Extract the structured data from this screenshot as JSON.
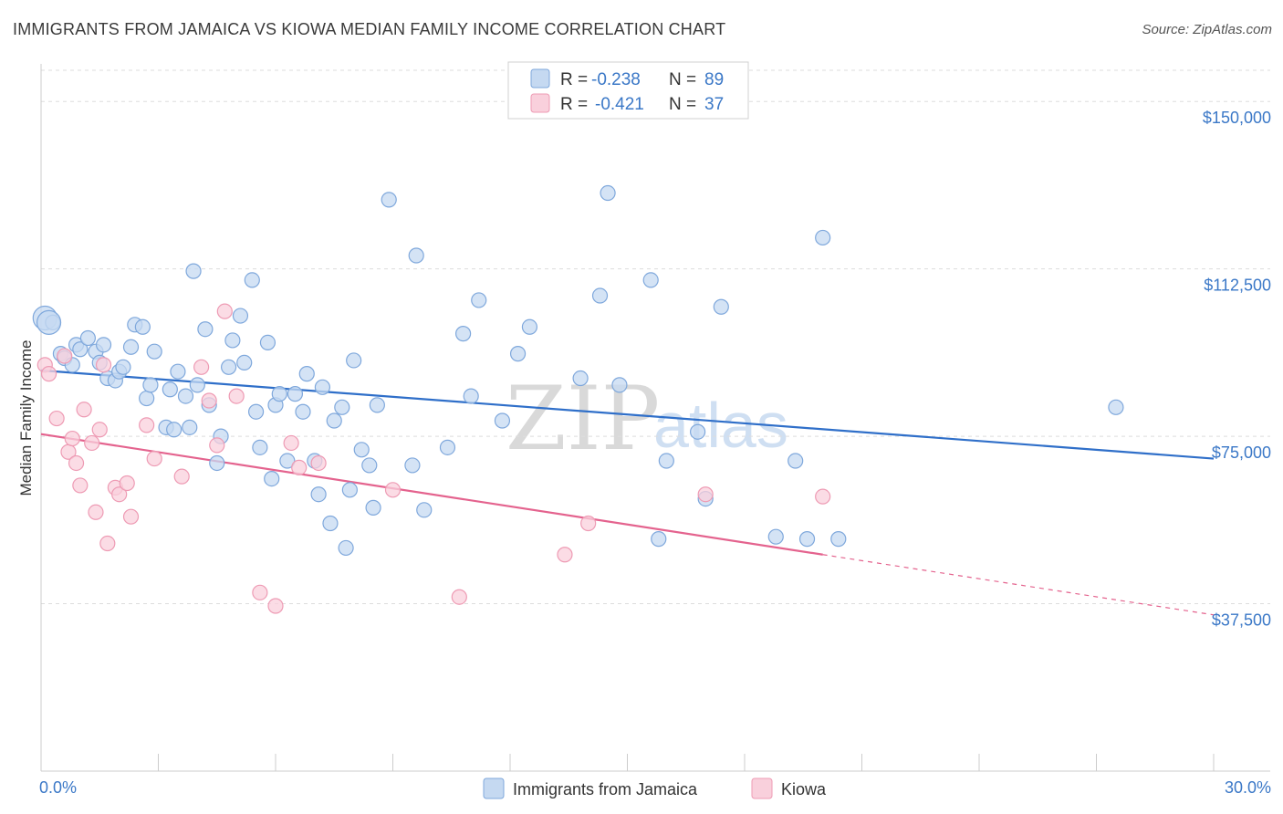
{
  "title": "IMMIGRANTS FROM JAMAICA VS KIOWA MEDIAN FAMILY INCOME CORRELATION CHART",
  "source": "Source: ZipAtlas.com",
  "watermark": {
    "zip": "ZIP",
    "atlas": "atlas"
  },
  "legend": {
    "series1": {
      "r_label": "R =",
      "r_value": "-0.238",
      "n_label": "N =",
      "n_value": "89"
    },
    "series2": {
      "r_label": "R =",
      "r_value": "-0.421",
      "n_label": "N =",
      "n_value": "37"
    }
  },
  "colors": {
    "jamaica_fill": "#c5d9f1",
    "jamaica_stroke": "#7fa8dc",
    "jamaica_line": "#2f6fc9",
    "kiowa_fill": "#f9d0dc",
    "kiowa_stroke": "#ee9bb4",
    "kiowa_line": "#e4638e",
    "grid": "#dddddd",
    "axis_text": "#3b78c7"
  },
  "chart_data": {
    "type": "scatter",
    "title": "IMMIGRANTS FROM JAMAICA VS KIOWA MEDIAN FAMILY INCOME CORRELATION CHART",
    "xlabel": "",
    "ylabel": "Median Family Income",
    "xlim": [
      0,
      30
    ],
    "ylim": [
      0,
      157000
    ],
    "x_tick_labels": [
      "0.0%",
      "30.0%"
    ],
    "y_ticks": [
      37500,
      75000,
      112500,
      150000
    ],
    "y_tick_labels": [
      "$37,500",
      "$75,000",
      "$112,500",
      "$150,000"
    ],
    "grid": true,
    "legend_position": "top-center",
    "series": [
      {
        "name": "Immigrants from Jamaica",
        "color": "#c5d9f1",
        "points": [
          [
            0.1,
            101500
          ],
          [
            0.3,
            100500
          ],
          [
            0.5,
            93500
          ],
          [
            0.6,
            92500
          ],
          [
            0.8,
            91000
          ],
          [
            0.9,
            95500
          ],
          [
            1.0,
            94500
          ],
          [
            1.2,
            97000
          ],
          [
            1.4,
            94000
          ],
          [
            1.5,
            91500
          ],
          [
            1.6,
            95500
          ],
          [
            1.7,
            88000
          ],
          [
            1.9,
            87500
          ],
          [
            2.0,
            89500
          ],
          [
            2.1,
            90500
          ],
          [
            2.3,
            95000
          ],
          [
            2.4,
            100000
          ],
          [
            2.6,
            99500
          ],
          [
            2.7,
            83500
          ],
          [
            2.8,
            86500
          ],
          [
            2.9,
            94000
          ],
          [
            3.2,
            77000
          ],
          [
            3.3,
            85500
          ],
          [
            3.4,
            76500
          ],
          [
            3.5,
            89500
          ],
          [
            3.7,
            84000
          ],
          [
            3.8,
            77000
          ],
          [
            3.9,
            112000
          ],
          [
            4.0,
            86500
          ],
          [
            4.2,
            99000
          ],
          [
            4.3,
            82000
          ],
          [
            4.5,
            69000
          ],
          [
            4.6,
            75000
          ],
          [
            4.8,
            90500
          ],
          [
            4.9,
            96500
          ],
          [
            5.1,
            102000
          ],
          [
            5.2,
            91500
          ],
          [
            5.4,
            110000
          ],
          [
            5.5,
            80500
          ],
          [
            5.6,
            72500
          ],
          [
            5.8,
            96000
          ],
          [
            5.9,
            65500
          ],
          [
            6.0,
            82000
          ],
          [
            6.1,
            84500
          ],
          [
            6.3,
            69500
          ],
          [
            6.5,
            84500
          ],
          [
            6.7,
            80500
          ],
          [
            6.8,
            89000
          ],
          [
            7.0,
            69500
          ],
          [
            7.1,
            62000
          ],
          [
            7.2,
            86000
          ],
          [
            7.4,
            55500
          ],
          [
            7.5,
            78500
          ],
          [
            7.7,
            81500
          ],
          [
            7.8,
            50000
          ],
          [
            7.9,
            63000
          ],
          [
            8.0,
            92000
          ],
          [
            8.5,
            59000
          ],
          [
            8.2,
            72000
          ],
          [
            8.4,
            68500
          ],
          [
            8.6,
            82000
          ],
          [
            8.9,
            128000
          ],
          [
            9.5,
            68500
          ],
          [
            9.6,
            115500
          ],
          [
            9.8,
            58500
          ],
          [
            10.4,
            72500
          ],
          [
            10.8,
            98000
          ],
          [
            11.0,
            84000
          ],
          [
            11.2,
            105500
          ],
          [
            11.8,
            78500
          ],
          [
            12.2,
            93500
          ],
          [
            12.5,
            99500
          ],
          [
            13.8,
            88000
          ],
          [
            14.3,
            106500
          ],
          [
            14.5,
            129500
          ],
          [
            14.8,
            86500
          ],
          [
            15.6,
            110000
          ],
          [
            15.8,
            52000
          ],
          [
            16.0,
            69500
          ],
          [
            16.8,
            76000
          ],
          [
            17.0,
            61000
          ],
          [
            17.4,
            104000
          ],
          [
            18.8,
            52500
          ],
          [
            19.3,
            69500
          ],
          [
            19.6,
            52000
          ],
          [
            20.0,
            119500
          ],
          [
            20.4,
            52000
          ],
          [
            27.5,
            81500
          ],
          [
            0.2,
            100500
          ]
        ],
        "trendline": {
          "x": [
            0,
            30
          ],
          "y": [
            91000,
            70000
          ]
        }
      },
      {
        "name": "Kiowa",
        "color": "#f9d0dc",
        "points": [
          [
            0.1,
            91000
          ],
          [
            0.2,
            89000
          ],
          [
            0.4,
            79000
          ],
          [
            0.6,
            93000
          ],
          [
            0.7,
            71500
          ],
          [
            0.8,
            74500
          ],
          [
            0.9,
            69000
          ],
          [
            1.0,
            64000
          ],
          [
            1.1,
            81000
          ],
          [
            1.3,
            73500
          ],
          [
            1.4,
            58000
          ],
          [
            1.5,
            76500
          ],
          [
            1.6,
            91000
          ],
          [
            1.7,
            51000
          ],
          [
            1.9,
            63500
          ],
          [
            2.0,
            62000
          ],
          [
            2.2,
            64500
          ],
          [
            2.3,
            57000
          ],
          [
            2.7,
            77500
          ],
          [
            2.9,
            70000
          ],
          [
            3.6,
            66000
          ],
          [
            4.1,
            90500
          ],
          [
            4.3,
            83000
          ],
          [
            4.5,
            73000
          ],
          [
            4.7,
            103000
          ],
          [
            5.0,
            84000
          ],
          [
            5.6,
            40000
          ],
          [
            6.0,
            37000
          ],
          [
            6.4,
            73500
          ],
          [
            6.6,
            68000
          ],
          [
            7.1,
            69000
          ],
          [
            9.0,
            63000
          ],
          [
            10.7,
            39000
          ],
          [
            13.4,
            48500
          ],
          [
            14.0,
            55500
          ],
          [
            17.0,
            62000
          ],
          [
            20.0,
            61500
          ]
        ],
        "trendline": {
          "x": [
            0,
            20,
            30
          ],
          "y": [
            75500,
            48500,
            35000
          ]
        }
      }
    ]
  },
  "bottom_legend": {
    "series1": "Immigrants from Jamaica",
    "series2": "Kiowa"
  }
}
